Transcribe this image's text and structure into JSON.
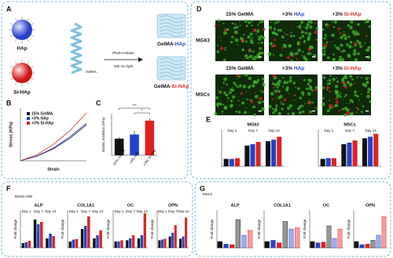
{
  "A": {
    "label": "A",
    "hap": "HAp",
    "sihap": "Si-HAp",
    "gelma": "GelMA",
    "photo": "Photo-initiator",
    "light": "440 nm light",
    "product1": [
      "GelMA-",
      "HAp"
    ],
    "product2": [
      "GelMA-",
      "Si-HAp"
    ]
  },
  "B": {
    "type": "line",
    "label": "B",
    "xlabel": "Strain",
    "ylabel": "Stress (KPa)",
    "xlim": [
      0,
      0.2
    ],
    "ylim": [
      0,
      35
    ],
    "x": [
      0,
      0.05,
      0.1,
      0.15,
      0.2
    ],
    "series": [
      {
        "name": "15% GelMA",
        "color": "#111111",
        "values": [
          0,
          3,
          8,
          15,
          24
        ]
      },
      {
        "name": "+3% HAp",
        "color": "#2244cc",
        "values": [
          0,
          3.2,
          8.5,
          16,
          25
        ]
      },
      {
        "name": "+3% Si-HAp",
        "color": "#dd2222",
        "values": [
          0,
          4,
          11,
          20,
          32
        ]
      }
    ]
  },
  "C": {
    "type": "bar",
    "label": "C",
    "ylabel": "Elastic modulus (KPa)",
    "categories": [
      "15% GelMA",
      "+3% HAp",
      "+3% Si-HAp"
    ],
    "values": [
      24,
      30,
      50
    ],
    "errors": [
      2,
      6,
      3
    ],
    "colors": [
      "#111111",
      "#2244cc",
      "#dd2222"
    ],
    "ylim": [
      0,
      60
    ],
    "significance": [
      "***",
      "*"
    ]
  },
  "D": {
    "label": "D",
    "headers_top": [
      [
        "15%",
        "GelMA"
      ],
      [
        "+3%",
        "HAp"
      ],
      [
        "+3%",
        "Si-HAp"
      ]
    ],
    "headers_bottom": [
      [
        "15%",
        "GelMA"
      ],
      [
        "+3%",
        "HAp"
      ],
      [
        "+3%",
        "Si-HAp"
      ]
    ],
    "rows": [
      "MG63",
      "MSCs"
    ]
  },
  "E": {
    "label": "E",
    "charts": [
      {
        "title": "MG63",
        "groups": [
          "Day 1",
          "Day 7",
          "Day 14"
        ],
        "ylim": [
          0,
          5
        ],
        "series": [
          {
            "color": "#111111",
            "values": [
              1,
              2.8,
              3.4
            ]
          },
          {
            "color": "#2244cc",
            "values": [
              1,
              3,
              3.6
            ]
          },
          {
            "color": "#dd2222",
            "values": [
              1.1,
              3.3,
              4
            ]
          }
        ]
      },
      {
        "title": "MSCs",
        "groups": [
          "Day 1",
          "Day 7",
          "Day 14"
        ],
        "ylim": [
          0,
          5
        ],
        "series": [
          {
            "color": "#111111",
            "values": [
              1,
              3,
              3.8
            ]
          },
          {
            "color": "#2244cc",
            "values": [
              1.1,
              3.2,
              4
            ]
          },
          {
            "color": "#dd2222",
            "values": [
              1.1,
              3.5,
              4.4
            ]
          }
        ]
      }
    ]
  },
  "F": {
    "label": "F",
    "subtitle": "MG63 cells",
    "charts": [
      {
        "title": "ALP",
        "ylabel": "Fold change",
        "groups": [
          "Day 1",
          "Day 7",
          "Day 14"
        ],
        "ylim": [
          0,
          8
        ],
        "series": [
          {
            "color": "#111111",
            "values": [
              1,
              6,
              2
            ]
          },
          {
            "color": "#2244cc",
            "values": [
              1.2,
              5,
              3
            ]
          },
          {
            "color": "#dd2222",
            "values": [
              1.5,
              5.5,
              2.5
            ]
          }
        ]
      },
      {
        "title": "COL1A1",
        "ylabel": "Fold change",
        "groups": [
          "Day 1",
          "Day 7",
          "Day 14"
        ],
        "ylim": [
          0,
          6
        ],
        "series": [
          {
            "color": "#111111",
            "values": [
              1,
              3,
              1.5
            ]
          },
          {
            "color": "#2244cc",
            "values": [
              1.3,
              3.5,
              2
            ]
          },
          {
            "color": "#dd2222",
            "values": [
              1.4,
              5,
              2.8
            ]
          }
        ]
      },
      {
        "title": "OC",
        "ylabel": "Fold change",
        "groups": [
          "Day 1",
          "Day 7",
          "Day 14"
        ],
        "ylim": [
          0,
          6
        ],
        "series": [
          {
            "color": "#111111",
            "values": [
              1,
              1.2,
              1.5
            ]
          },
          {
            "color": "#2244cc",
            "values": [
              1,
              1.5,
              2
            ]
          },
          {
            "color": "#dd2222",
            "values": [
              1.2,
              2,
              5.5
            ]
          }
        ]
      },
      {
        "title": "OPN",
        "ylabel": "Fold change",
        "groups": [
          "Day 1",
          "Day 7",
          "Day 14"
        ],
        "ylim": [
          0,
          5
        ],
        "series": [
          {
            "color": "#111111",
            "values": [
              1,
              1.5,
              1.2
            ]
          },
          {
            "color": "#2244cc",
            "values": [
              1.1,
              2,
              1.5
            ]
          },
          {
            "color": "#dd2222",
            "values": [
              1.2,
              3,
              4
            ]
          }
        ]
      }
    ]
  },
  "G": {
    "label": "G",
    "subtitle": "MSCs",
    "charts": [
      {
        "title": "ALP",
        "ylabel": "Fold change",
        "ylim": [
          0,
          6
        ],
        "values": [
          1,
          0.6,
          0.5,
          4.5,
          2,
          2.8
        ],
        "colors": [
          "#111111",
          "#2244cc",
          "#dd2222",
          "#111111",
          "#2244cc",
          "#dd2222"
        ]
      },
      {
        "title": "COL1A1",
        "ylabel": "Fold change",
        "ylim": [
          0,
          6
        ],
        "values": [
          1,
          1.2,
          0.8,
          4.2,
          3,
          3.2
        ],
        "colors": [
          "#111111",
          "#2244cc",
          "#dd2222",
          "#111111",
          "#2244cc",
          "#dd2222"
        ]
      },
      {
        "title": "OC",
        "ylabel": "Fold change",
        "ylim": [
          0,
          6
        ],
        "values": [
          1,
          0.8,
          0.9,
          3.5,
          1.5,
          3
        ],
        "colors": [
          "#111111",
          "#2244cc",
          "#dd2222",
          "#111111",
          "#2244cc",
          "#dd2222"
        ]
      },
      {
        "title": "OPN",
        "ylabel": "Fold change",
        "ylim": [
          0,
          6
        ],
        "values": [
          1,
          0.5,
          0.6,
          1.2,
          2,
          5
        ],
        "colors": [
          "#111111",
          "#2244cc",
          "#dd2222",
          "#111111",
          "#2244cc",
          "#dd2222"
        ]
      }
    ]
  }
}
